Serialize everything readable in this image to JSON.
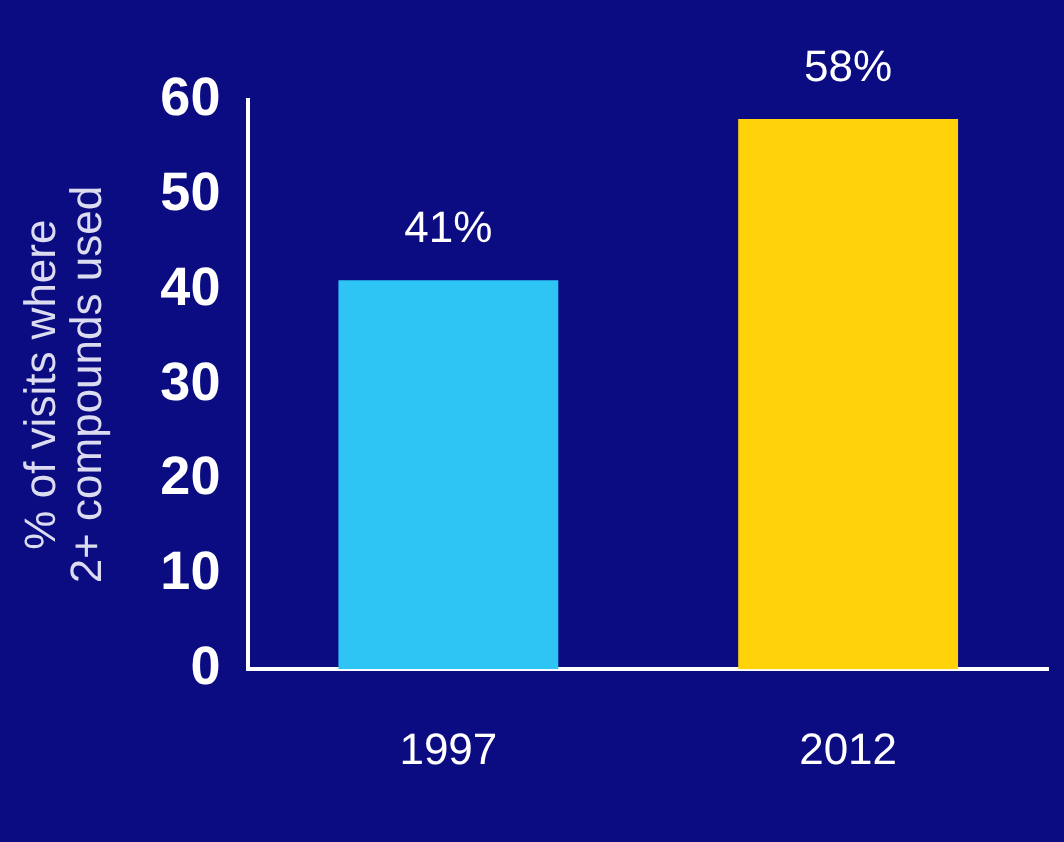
{
  "chart_data": {
    "type": "bar",
    "ylabel": "% of visits where 2+ compounds used",
    "categories": [
      "1997",
      "2012"
    ],
    "series": [
      {
        "colors": [
          "#2ec4f4",
          "#ffd20a"
        ],
        "values": [
          41,
          58
        ],
        "value_labels": [
          "41%",
          "58%"
        ]
      }
    ],
    "ylim": [
      0,
      60
    ],
    "yticks": [
      0,
      10,
      20,
      30,
      40,
      50,
      60
    ],
    "grid": false,
    "legend": false
  }
}
